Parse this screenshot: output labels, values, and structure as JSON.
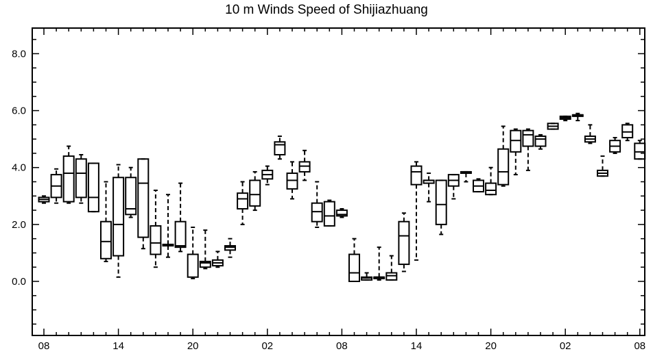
{
  "chart_data": {
    "type": "boxplot",
    "title": "10 m Winds Speed of Shijiazhuang",
    "xlabel": "",
    "ylabel": "",
    "ylim": [
      -1.9,
      8.9
    ],
    "y_ticks": [
      "0.0",
      "2.0",
      "4.0",
      "6.0",
      "8.0"
    ],
    "x_tick_labels": [
      "08",
      "14",
      "20",
      "02",
      "08",
      "14",
      "20",
      "02",
      "08"
    ],
    "x_tick_hours": [
      0,
      6,
      12,
      18,
      24,
      30,
      36,
      42,
      48
    ],
    "grid": false,
    "boxes": [
      {
        "hour": 0,
        "min": 2.75,
        "q1": 2.8,
        "median": 2.88,
        "q3": 2.95,
        "max": 3.0
      },
      {
        "hour": 1,
        "min": 2.75,
        "q1": 2.95,
        "median": 3.35,
        "q3": 3.75,
        "max": 3.95
      },
      {
        "hour": 2,
        "min": 2.75,
        "q1": 2.8,
        "median": 3.8,
        "q3": 4.4,
        "max": 4.75
      },
      {
        "hour": 3,
        "min": 2.75,
        "q1": 2.95,
        "median": 3.8,
        "q3": 4.3,
        "max": 4.45
      },
      {
        "hour": 4,
        "min": 2.45,
        "q1": 2.45,
        "median": 2.95,
        "q3": 4.15,
        "max": 4.15
      },
      {
        "hour": 5,
        "min": 0.7,
        "q1": 0.8,
        "median": 1.4,
        "q3": 2.1,
        "max": 3.5
      },
      {
        "hour": 6,
        "min": 0.15,
        "q1": 0.9,
        "median": 2.0,
        "q3": 3.65,
        "max": 4.1
      },
      {
        "hour": 7,
        "min": 2.25,
        "q1": 2.35,
        "median": 2.55,
        "q3": 3.65,
        "max": 4.0
      },
      {
        "hour": 8,
        "min": 1.15,
        "q1": 1.55,
        "median": 3.45,
        "q3": 4.3,
        "max": 4.3
      },
      {
        "hour": 9,
        "min": 0.5,
        "q1": 0.95,
        "median": 1.35,
        "q3": 1.95,
        "max": 3.2
      },
      {
        "hour": 10,
        "min": 0.85,
        "q1": 1.25,
        "median": 1.28,
        "q3": 1.3,
        "max": 3.05
      },
      {
        "hour": 11,
        "min": 1.05,
        "q1": 1.2,
        "median": 1.25,
        "q3": 2.1,
        "max": 3.45
      },
      {
        "hour": 12,
        "min": 0.1,
        "q1": 0.15,
        "median": 0.95,
        "q3": 0.95,
        "max": 1.9
      },
      {
        "hour": 13,
        "min": 0.45,
        "q1": 0.5,
        "median": 0.65,
        "q3": 0.7,
        "max": 1.8
      },
      {
        "hour": 14,
        "min": 0.5,
        "q1": 0.55,
        "median": 0.65,
        "q3": 0.75,
        "max": 1.05
      },
      {
        "hour": 15,
        "min": 0.85,
        "q1": 1.1,
        "median": 1.2,
        "q3": 1.25,
        "max": 1.5
      },
      {
        "hour": 16,
        "min": 2.0,
        "q1": 2.55,
        "median": 2.9,
        "q3": 3.1,
        "max": 3.5
      },
      {
        "hour": 17,
        "min": 2.5,
        "q1": 2.65,
        "median": 3.05,
        "q3": 3.55,
        "max": 3.85
      },
      {
        "hour": 18,
        "min": 3.4,
        "q1": 3.6,
        "median": 3.75,
        "q3": 3.9,
        "max": 4.05
      },
      {
        "hour": 19,
        "min": 4.3,
        "q1": 4.45,
        "median": 4.8,
        "q3": 4.9,
        "max": 5.1
      },
      {
        "hour": 20,
        "min": 2.9,
        "q1": 3.25,
        "median": 3.55,
        "q3": 3.8,
        "max": 4.2
      },
      {
        "hour": 21,
        "min": 3.55,
        "q1": 3.85,
        "median": 4.05,
        "q3": 4.2,
        "max": 4.6
      },
      {
        "hour": 22,
        "min": 1.9,
        "q1": 2.1,
        "median": 2.45,
        "q3": 2.75,
        "max": 3.5
      },
      {
        "hour": 23,
        "min": 1.95,
        "q1": 1.95,
        "median": 2.3,
        "q3": 2.8,
        "max": 2.85
      },
      {
        "hour": 24,
        "min": 2.25,
        "q1": 2.3,
        "median": 2.35,
        "q3": 2.5,
        "max": 2.55
      },
      {
        "hour": 25,
        "min": 0.0,
        "q1": 0.0,
        "median": 0.3,
        "q3": 0.95,
        "max": 1.5
      },
      {
        "hour": 26,
        "min": 0.05,
        "q1": 0.05,
        "median": 0.12,
        "q3": 0.15,
        "max": 0.3
      },
      {
        "hour": 27,
        "min": 0.05,
        "q1": 0.1,
        "median": 0.15,
        "q3": 0.15,
        "max": 1.2
      },
      {
        "hour": 28,
        "min": 0.05,
        "q1": 0.05,
        "median": 0.2,
        "q3": 0.3,
        "max": 0.9
      },
      {
        "hour": 29,
        "min": 0.35,
        "q1": 0.6,
        "median": 1.6,
        "q3": 2.1,
        "max": 2.4
      },
      {
        "hour": 30,
        "min": 0.75,
        "q1": 3.4,
        "median": 3.85,
        "q3": 4.05,
        "max": 4.2
      },
      {
        "hour": 31,
        "min": 2.8,
        "q1": 3.45,
        "median": 3.55,
        "q3": 3.55,
        "max": 3.8
      },
      {
        "hour": 32,
        "min": 1.65,
        "q1": 2.0,
        "median": 2.7,
        "q3": 3.55,
        "max": 3.55
      },
      {
        "hour": 33,
        "min": 2.9,
        "q1": 3.35,
        "median": 3.55,
        "q3": 3.75,
        "max": 3.75
      },
      {
        "hour": 34,
        "min": 3.5,
        "q1": 3.8,
        "median": 3.85,
        "q3": 3.85,
        "max": 3.85
      },
      {
        "hour": 35,
        "min": 3.15,
        "q1": 3.15,
        "median": 3.35,
        "q3": 3.55,
        "max": 3.6
      },
      {
        "hour": 36,
        "min": 3.05,
        "q1": 3.05,
        "median": 3.2,
        "q3": 3.45,
        "max": 4.0
      },
      {
        "hour": 37,
        "min": 3.35,
        "q1": 3.4,
        "median": 3.85,
        "q3": 4.65,
        "max": 5.45
      },
      {
        "hour": 38,
        "min": 3.75,
        "q1": 4.55,
        "median": 4.95,
        "q3": 5.3,
        "max": 5.35
      },
      {
        "hour": 39,
        "min": 3.9,
        "q1": 4.75,
        "median": 5.15,
        "q3": 5.3,
        "max": 5.35
      },
      {
        "hour": 40,
        "min": 4.65,
        "q1": 4.75,
        "median": 5.0,
        "q3": 5.1,
        "max": 5.15
      },
      {
        "hour": 41,
        "min": 5.35,
        "q1": 5.35,
        "median": 5.45,
        "q3": 5.55,
        "max": 5.55
      },
      {
        "hour": 42,
        "min": 5.65,
        "q1": 5.7,
        "median": 5.75,
        "q3": 5.8,
        "max": 5.8
      },
      {
        "hour": 43,
        "min": 5.65,
        "q1": 5.8,
        "median": 5.85,
        "q3": 5.85,
        "max": 5.9
      },
      {
        "hour": 44,
        "min": 4.85,
        "q1": 4.9,
        "median": 5.0,
        "q3": 5.1,
        "max": 5.5
      },
      {
        "hour": 45,
        "min": 3.7,
        "q1": 3.7,
        "median": 3.8,
        "q3": 3.9,
        "max": 4.4
      },
      {
        "hour": 46,
        "min": 4.5,
        "q1": 4.55,
        "median": 4.75,
        "q3": 4.95,
        "max": 5.05
      },
      {
        "hour": 47,
        "min": 4.95,
        "q1": 5.05,
        "median": 5.25,
        "q3": 5.5,
        "max": 5.55
      },
      {
        "hour": 48,
        "min": 4.3,
        "q1": 4.3,
        "median": 4.55,
        "q3": 4.85,
        "max": 4.95
      }
    ],
    "colors": {
      "stroke": "#000000",
      "background": "#ffffff"
    }
  }
}
